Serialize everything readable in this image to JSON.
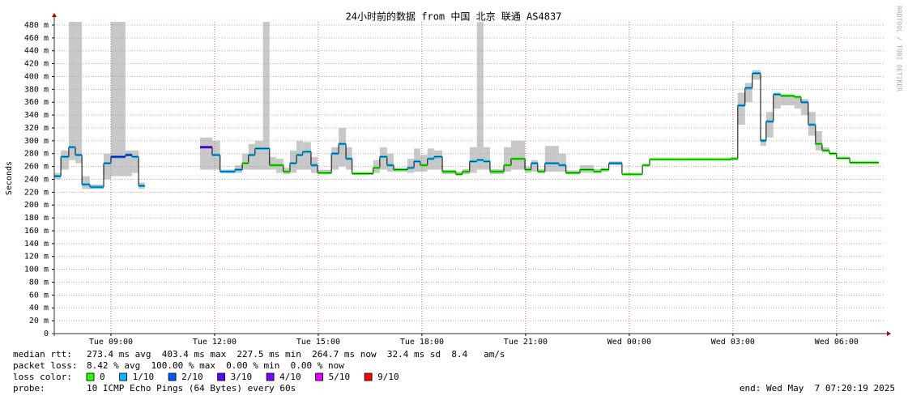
{
  "chart_data": {
    "type": "line",
    "title": "24小时前的数据 from 中国 北京 联通 AS4837",
    "y_label": "Seconds",
    "watermark": "RRDTOOL / TOBI OETIKER",
    "xlim": [
      7.36,
      31.41
    ],
    "ylim": [
      0,
      485
    ],
    "xticks": [
      {
        "value": 9,
        "label": "Tue 09:00"
      },
      {
        "value": 12,
        "label": "Tue 12:00"
      },
      {
        "value": 15,
        "label": "Tue 15:00"
      },
      {
        "value": 18,
        "label": "Tue 18:00"
      },
      {
        "value": 21,
        "label": "Tue 21:00"
      },
      {
        "value": 24,
        "label": "Wed 00:00"
      },
      {
        "value": 27,
        "label": "Wed 03:00"
      },
      {
        "value": 30,
        "label": "Wed 06:00"
      }
    ],
    "yticks": [
      0,
      {
        "value": 20,
        "label": "20 m"
      },
      {
        "value": 40,
        "label": "40 m"
      },
      {
        "value": 60,
        "label": "60 m"
      },
      {
        "value": 80,
        "label": "80 m"
      },
      {
        "value": 100,
        "label": "100 m"
      },
      {
        "value": 120,
        "label": "120 m"
      },
      {
        "value": 140,
        "label": "140 m"
      },
      {
        "value": 160,
        "label": "160 m"
      },
      {
        "value": 180,
        "label": "180 m"
      },
      {
        "value": 200,
        "label": "200 m"
      },
      {
        "value": 220,
        "label": "220 m"
      },
      {
        "value": 240,
        "label": "240 m"
      },
      {
        "value": 260,
        "label": "260 m"
      },
      {
        "value": 280,
        "label": "280 m"
      },
      {
        "value": 300,
        "label": "300 m"
      },
      {
        "value": 320,
        "label": "320 m"
      },
      {
        "value": 340,
        "label": "340 m"
      },
      {
        "value": 360,
        "label": "360 m"
      },
      {
        "value": 380,
        "label": "380 m"
      },
      {
        "value": 400,
        "label": "400 m"
      },
      {
        "value": 420,
        "label": "420 m"
      },
      {
        "value": 440,
        "label": "440 m"
      },
      {
        "value": 460,
        "label": "460 m"
      },
      {
        "value": 480,
        "label": "480 m"
      }
    ],
    "grid": true,
    "smoke_color": "#9a9a9a",
    "line_color": "#000000",
    "x": [
      7.36,
      7.55,
      7.78,
      7.97,
      8.16,
      8.39,
      8.79,
      9.0,
      9.42,
      9.61,
      9.8,
      9.98,
      11.58,
      11.93,
      12.16,
      12.59,
      12.8,
      12.98,
      13.17,
      13.4,
      13.59,
      13.78,
      13.99,
      14.18,
      14.37,
      14.55,
      14.79,
      14.98,
      15.38,
      15.59,
      15.8,
      15.98,
      16.59,
      16.78,
      16.99,
      17.18,
      17.58,
      17.77,
      17.95,
      18.16,
      18.35,
      18.59,
      18.98,
      19.17,
      19.38,
      19.59,
      19.78,
      19.97,
      20.37,
      20.58,
      20.98,
      21.16,
      21.35,
      21.56,
      21.96,
      22.17,
      22.57,
      22.97,
      23.18,
      23.41,
      23.79,
      24.38,
      24.59,
      26.95,
      27.14,
      27.35,
      27.56,
      27.8,
      27.96,
      28.17,
      28.38,
      28.78,
      28.97,
      29.18,
      29.39,
      29.58,
      29.79,
      30.0,
      30.38,
      31.22
    ],
    "series": [
      {
        "values": [
          245,
          275,
          290,
          278,
          232,
          228,
          265,
          275,
          278,
          275,
          230,
          null,
          290,
          278,
          252,
          255,
          265,
          278,
          288,
          288,
          262,
          262,
          252,
          265,
          278,
          283,
          262,
          250,
          280,
          295,
          272,
          249,
          258,
          275,
          262,
          255,
          258,
          268,
          262,
          272,
          275,
          252,
          248,
          252,
          268,
          270,
          268,
          252,
          262,
          272,
          255,
          265,
          252,
          265,
          262,
          250,
          255,
          252,
          255,
          265,
          248,
          262,
          271,
          272,
          355,
          382,
          405,
          300,
          330,
          372,
          370,
          368,
          360,
          325,
          295,
          285,
          280,
          273,
          266,
          null
        ],
        "low": [
          240,
          255,
          270,
          265,
          225,
          225,
          240,
          245,
          245,
          250,
          225,
          null,
          255,
          255,
          250,
          250,
          255,
          255,
          255,
          255,
          255,
          250,
          248,
          250,
          255,
          255,
          250,
          248,
          255,
          260,
          255,
          247,
          250,
          255,
          252,
          252,
          250,
          252,
          252,
          255,
          255,
          248,
          247,
          248,
          250,
          255,
          255,
          248,
          252,
          255,
          250,
          252,
          250,
          252,
          252,
          248,
          250,
          250,
          252,
          262,
          247,
          260,
          270,
          270,
          325,
          360,
          395,
          292,
          305,
          350,
          355,
          350,
          340,
          308,
          285,
          282,
          278,
          272,
          264,
          null
        ],
        "high": [
          250,
          285,
          485,
          485,
          245,
          232,
          280,
          485,
          285,
          285,
          235,
          null,
          305,
          300,
          255,
          262,
          280,
          295,
          300,
          485,
          275,
          272,
          258,
          285,
          300,
          298,
          275,
          255,
          290,
          320,
          290,
          250,
          270,
          290,
          280,
          258,
          272,
          288,
          278,
          288,
          285,
          255,
          252,
          256,
          290,
          485,
          290,
          256,
          290,
          300,
          260,
          270,
          256,
          292,
          280,
          254,
          262,
          256,
          258,
          268,
          249,
          264,
          272,
          275,
          375,
          390,
          410,
          303,
          345,
          375,
          372,
          370,
          365,
          345,
          315,
          290,
          282,
          275,
          267,
          null
        ],
        "loss": [
          1,
          1,
          1,
          1,
          1,
          1,
          1,
          2,
          2,
          1,
          1,
          null,
          3,
          1,
          1,
          1,
          0,
          1,
          1,
          1,
          0,
          0,
          0,
          1,
          1,
          1,
          1,
          0,
          1,
          1,
          1,
          0,
          0,
          1,
          1,
          0,
          1,
          1,
          0,
          1,
          1,
          0,
          0,
          0,
          1,
          1,
          1,
          0,
          0,
          0,
          0,
          1,
          0,
          1,
          1,
          0,
          0,
          0,
          0,
          1,
          0,
          0,
          0,
          0,
          1,
          1,
          1,
          1,
          1,
          1,
          0,
          0,
          1,
          1,
          0,
          0,
          0,
          0,
          0,
          null
        ]
      }
    ],
    "loss_legend": {
      "label": "loss color:",
      "entries": [
        {
          "value": 0,
          "label": "0",
          "color": "#26ff00"
        },
        {
          "value": 1,
          "label": "1/10",
          "color": "#00b8ff"
        },
        {
          "value": 2,
          "label": "2/10",
          "color": "#0059ff"
        },
        {
          "value": 3,
          "label": "3/10",
          "color": "#5e00ff"
        },
        {
          "value": 4,
          "label": "4/10",
          "color": "#7e00ff"
        },
        {
          "value": 5,
          "label": "5/10",
          "color": "#dd00ff"
        },
        {
          "value": 9,
          "label": "9/10",
          "color": "#ff0000"
        }
      ]
    }
  },
  "stats": {
    "median_rtt": {
      "label": "median rtt:",
      "text": "273.4 ms avg  403.4 ms max  227.5 ms min  264.7 ms now  32.4 ms sd  8.4   am/s"
    },
    "packet_loss": {
      "label": "packet loss:",
      "text": "8.42 % avg  100.00 % max  0.00 % min  0.00 % now"
    },
    "probe": {
      "label": "probe:",
      "text": "10 ICMP Echo Pings (64 Bytes) every 60s"
    },
    "end": "end: Wed May  7 07:20:19 2025"
  }
}
